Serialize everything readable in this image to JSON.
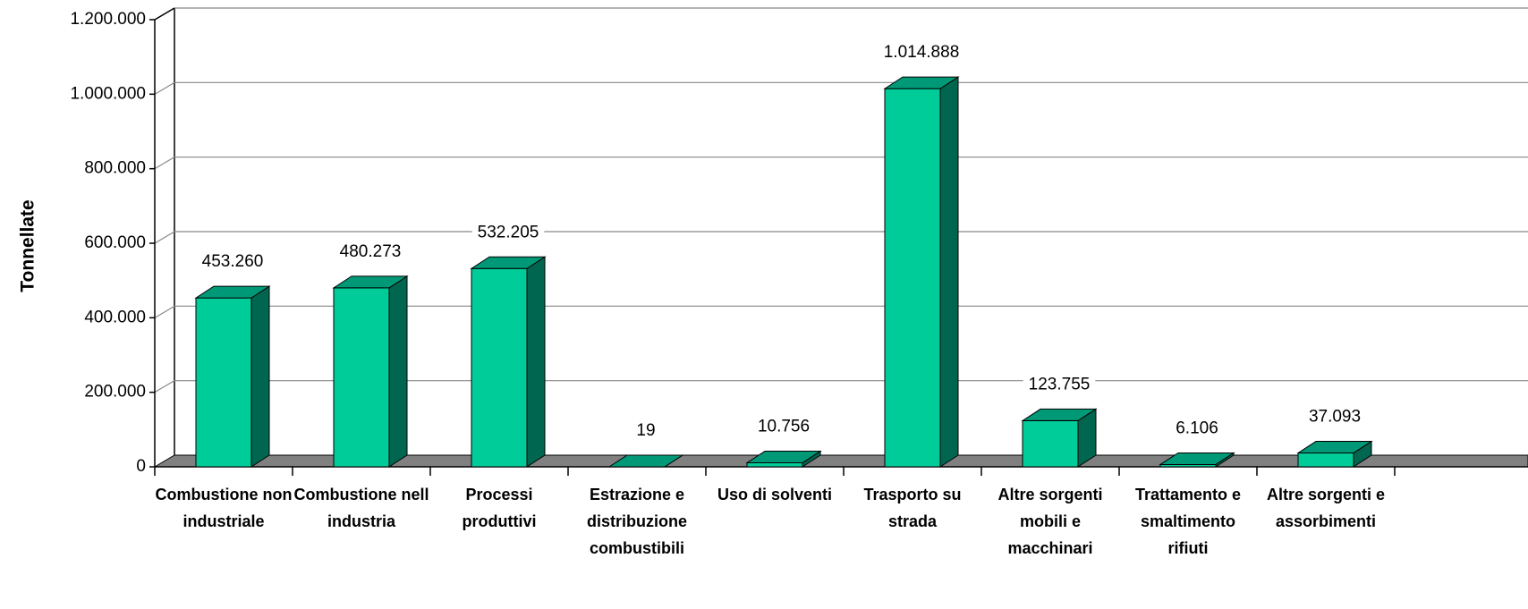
{
  "chart_data": {
    "type": "bar3d",
    "y_label": "Tonnellate",
    "categories": [
      "Combustione non industriale",
      "Combustione nell industria",
      "Processi produttivi",
      "Estrazione e distribuzione combustibili",
      "Uso di solventi",
      "Trasporto su strada",
      "Altre sorgenti mobili e macchinari",
      "Trattamento e smaltimento rifiuti",
      "Altre sorgenti e assorbimenti"
    ],
    "values": [
      453260,
      480273,
      532205,
      19,
      10756,
      1014888,
      123755,
      6106,
      37093
    ],
    "value_labels": [
      "453.260",
      "480.273",
      "532.205",
      "19",
      "10.756",
      "1.014.888",
      "123.755",
      "6.106",
      "37.093"
    ],
    "colors": {
      "front": "#00cc99",
      "top": "#009977",
      "side": "#006650",
      "floor": "#808080"
    },
    "ylim": [
      0,
      1200000
    ],
    "yticks": [
      0,
      {
        "value": 200000,
        "label": "200.000"
      },
      {
        "value": 400000,
        "label": "400.000"
      },
      {
        "value": 600000,
        "label": "600.000"
      },
      {
        "value": 800000,
        "label": "800.000"
      },
      {
        "value": 1000000,
        "label": "1.000.000"
      },
      {
        "value": 1200000,
        "label": "1.200.000"
      }
    ],
    "grid": true
  }
}
